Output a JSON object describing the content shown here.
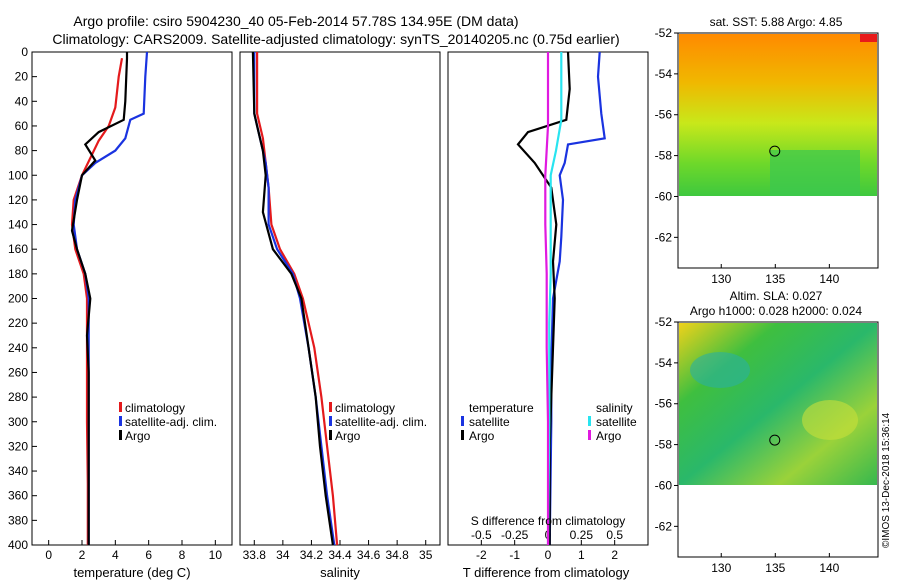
{
  "header": {
    "line1": "Argo profile: csiro 5904230_40 05-Feb-2014 57.78S 134.95E (DM data)",
    "line2": "Climatology: CARS2009. Satellite-adjusted climatology: synTS_20140205.nc (0.75d earlier)"
  },
  "footer": {
    "credit": "©IMOS 13-Dec-2018 15:36:14"
  },
  "colors": {
    "climatology": "#e41a1c",
    "satellite": "#1a33e0",
    "argo": "#000000",
    "sal_satellite": "#28e4f0",
    "sal_argo": "#e01ae0"
  },
  "chart_data": [
    {
      "type": "line",
      "title": "",
      "xlabel": "temperature (deg C)",
      "ylabel": "",
      "xlim": [
        -1,
        11
      ],
      "ylim": [
        400,
        0
      ],
      "xticks": [
        "0",
        "2",
        "4",
        "6",
        "8",
        "10"
      ],
      "yticks": [
        "0",
        "20",
        "40",
        "60",
        "80",
        "100",
        "120",
        "140",
        "160",
        "180",
        "200",
        "220",
        "240",
        "260",
        "280",
        "300",
        "320",
        "340",
        "360",
        "380",
        "400"
      ],
      "legend": [
        "climatology",
        "satellite-adj. clim.",
        "Argo"
      ],
      "series": [
        {
          "name": "climatology",
          "points": [
            [
              4.4,
              5
            ],
            [
              4.2,
              20
            ],
            [
              4.0,
              45
            ],
            [
              3.6,
              60
            ],
            [
              3.0,
              72
            ],
            [
              2.0,
              100
            ],
            [
              1.5,
              120
            ],
            [
              1.4,
              140
            ],
            [
              1.6,
              160
            ],
            [
              2.1,
              180
            ],
            [
              2.3,
              200
            ],
            [
              2.3,
              240
            ],
            [
              2.3,
              300
            ],
            [
              2.35,
              350
            ],
            [
              2.35,
              400
            ]
          ]
        },
        {
          "name": "satellite-adj. clim.",
          "points": [
            [
              5.9,
              0
            ],
            [
              5.8,
              20
            ],
            [
              5.7,
              50
            ],
            [
              4.9,
              55
            ],
            [
              4.6,
              70
            ],
            [
              4.0,
              80
            ],
            [
              2.8,
              90
            ],
            [
              2.0,
              100
            ],
            [
              1.6,
              120
            ],
            [
              1.5,
              140
            ],
            [
              1.7,
              160
            ],
            [
              2.2,
              180
            ],
            [
              2.4,
              200
            ],
            [
              2.4,
              260
            ],
            [
              2.4,
              320
            ],
            [
              2.4,
              400
            ]
          ]
        },
        {
          "name": "Argo",
          "points": [
            [
              4.7,
              0
            ],
            [
              4.7,
              5
            ],
            [
              4.6,
              40
            ],
            [
              4.5,
              55
            ],
            [
              3.0,
              65
            ],
            [
              2.2,
              75
            ],
            [
              2.8,
              88
            ],
            [
              2.0,
              100
            ],
            [
              1.7,
              120
            ],
            [
              1.4,
              145
            ],
            [
              1.7,
              160
            ],
            [
              2.2,
              180
            ],
            [
              2.5,
              200
            ],
            [
              2.3,
              230
            ],
            [
              2.4,
              260
            ],
            [
              2.4,
              300
            ],
            [
              2.4,
              350
            ],
            [
              2.4,
              400
            ]
          ]
        }
      ]
    },
    {
      "type": "line",
      "title": "",
      "xlabel": "salinity",
      "ylabel": "",
      "xlim": [
        33.7,
        35.1
      ],
      "ylim": [
        400,
        0
      ],
      "xticks": [
        "33.8",
        "34",
        "34.2",
        "34.4",
        "34.6",
        "34.8",
        "35"
      ],
      "yticks": [],
      "legend": [
        "climatology",
        "satellite-adj. clim.",
        "Argo"
      ],
      "series": [
        {
          "name": "climatology",
          "points": [
            [
              33.82,
              0
            ],
            [
              33.82,
              50
            ],
            [
              33.86,
              70
            ],
            [
              33.88,
              90
            ],
            [
              33.9,
              110
            ],
            [
              33.92,
              140
            ],
            [
              33.98,
              160
            ],
            [
              34.08,
              180
            ],
            [
              34.14,
              200
            ],
            [
              34.22,
              240
            ],
            [
              34.27,
              280
            ],
            [
              34.31,
              320
            ],
            [
              34.35,
              360
            ],
            [
              34.38,
              400
            ]
          ]
        },
        {
          "name": "satellite-adj. clim.",
          "points": [
            [
              33.8,
              0
            ],
            [
              33.8,
              50
            ],
            [
              33.84,
              70
            ],
            [
              33.88,
              90
            ],
            [
              33.9,
              110
            ],
            [
              33.9,
              140
            ],
            [
              33.96,
              160
            ],
            [
              34.07,
              180
            ],
            [
              34.12,
              200
            ],
            [
              34.18,
              240
            ],
            [
              34.23,
              280
            ],
            [
              34.27,
              320
            ],
            [
              34.31,
              360
            ],
            [
              34.36,
              400
            ]
          ]
        },
        {
          "name": "Argo",
          "points": [
            [
              33.79,
              0
            ],
            [
              33.8,
              50
            ],
            [
              33.82,
              60
            ],
            [
              33.86,
              80
            ],
            [
              33.88,
              100
            ],
            [
              33.86,
              130
            ],
            [
              33.93,
              160
            ],
            [
              34.06,
              180
            ],
            [
              34.13,
              200
            ],
            [
              34.18,
              240
            ],
            [
              34.23,
              280
            ],
            [
              34.26,
              320
            ],
            [
              34.3,
              360
            ],
            [
              34.35,
              400
            ]
          ]
        }
      ]
    },
    {
      "type": "line",
      "title": "",
      "xlabel": "T difference from climatology",
      "ylabel": "",
      "xlim": [
        -3,
        3
      ],
      "ylim": [
        400,
        0
      ],
      "xticks": [
        "-2",
        "-1",
        "0",
        "1",
        "2"
      ],
      "yticks": [],
      "secondary_xlabel": "S difference from climatology",
      "secondary_xlim": [
        -0.75,
        0.75
      ],
      "secondary_xticks": [
        "-0.5",
        "-0.25",
        "0",
        "0.25",
        "0.5"
      ],
      "legend_temperature": {
        "title": "temperature",
        "entries": [
          "satellite",
          "Argo"
        ]
      },
      "legend_salinity": {
        "title": "salinity",
        "entries": [
          "satellite",
          "Argo"
        ]
      },
      "series": [
        {
          "name": "temperature satellite",
          "points": [
            [
              1.55,
              0
            ],
            [
              1.5,
              20
            ],
            [
              1.6,
              50
            ],
            [
              1.7,
              70
            ],
            [
              0.6,
              75
            ],
            [
              0.5,
              90
            ],
            [
              0.35,
              100
            ],
            [
              0.45,
              120
            ],
            [
              0.4,
              150
            ],
            [
              0.35,
              170
            ],
            [
              0.15,
              200
            ],
            [
              0.1,
              250
            ],
            [
              0.1,
              300
            ],
            [
              0.05,
              400
            ]
          ]
        },
        {
          "name": "temperature Argo",
          "points": [
            [
              0.6,
              0
            ],
            [
              0.65,
              30
            ],
            [
              0.55,
              55
            ],
            [
              -0.6,
              65
            ],
            [
              -0.9,
              75
            ],
            [
              -0.4,
              90
            ],
            [
              0.1,
              110
            ],
            [
              0.25,
              140
            ],
            [
              0.15,
              170
            ],
            [
              0.2,
              200
            ],
            [
              0.15,
              240
            ],
            [
              0.1,
              280
            ],
            [
              0.05,
              320
            ],
            [
              0.05,
              400
            ]
          ]
        },
        {
          "name": "salinity satellite",
          "points": [
            [
              0.1,
              0
            ],
            [
              0.1,
              40
            ],
            [
              0.1,
              55
            ],
            [
              0.06,
              80
            ],
            [
              0.02,
              100
            ],
            [
              0.02,
              140
            ],
            [
              0.02,
              180
            ],
            [
              0.01,
              220
            ],
            [
              0.01,
              300
            ],
            [
              0.0,
              400
            ]
          ]
        },
        {
          "name": "salinity Argo",
          "points": [
            [
              0.0,
              0
            ],
            [
              0.0,
              60
            ],
            [
              -0.02,
              100
            ],
            [
              -0.02,
              140
            ],
            [
              -0.01,
              180
            ],
            [
              -0.01,
              240
            ],
            [
              0.0,
              300
            ],
            [
              0.0,
              400
            ]
          ]
        }
      ]
    },
    {
      "type": "heatmap",
      "title": "sat. SST: 5.88 Argo: 4.85",
      "xlabel": "",
      "ylabel": "",
      "xlim": [
        126,
        144.5
      ],
      "ylim": [
        -63.5,
        -52
      ],
      "xticks": [
        "130",
        "135",
        "140"
      ],
      "yticks": [
        "-52",
        "-54",
        "-56",
        "-58",
        "-60",
        "-62"
      ],
      "marker": {
        "lon": 134.95,
        "lat": -57.78
      }
    },
    {
      "type": "heatmap",
      "title": "Altim. SLA: 0.027",
      "subtitle": "Argo h1000: 0.028 h2000: 0.024",
      "xlabel": "",
      "ylabel": "",
      "xlim": [
        126,
        144.5
      ],
      "ylim": [
        -63.5,
        -52
      ],
      "xticks": [
        "130",
        "135",
        "140"
      ],
      "yticks": [
        "-52",
        "-54",
        "-56",
        "-58",
        "-60",
        "-62"
      ],
      "marker": {
        "lon": 134.95,
        "lat": -57.78
      }
    }
  ]
}
